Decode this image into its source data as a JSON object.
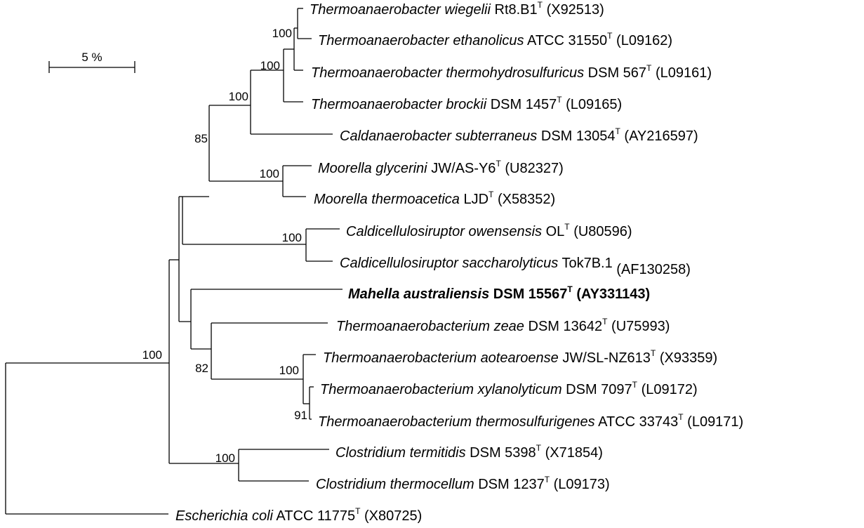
{
  "scale_bar": {
    "label": "5 %"
  },
  "taxa": [
    {
      "id": "t-wiegelii",
      "genus": "Thermoanaerobacter",
      "species": "wiegelii",
      "strain": "Rt8.B1",
      "type_mark": "T",
      "accession": "(X92513)",
      "bold": false
    },
    {
      "id": "t-ethanolicus",
      "genus": "Thermoanaerobacter",
      "species": "ethanolicus",
      "strain": "ATCC 31550",
      "type_mark": "T",
      "accession": "(L09162)",
      "bold": false
    },
    {
      "id": "t-thermohydrosulfuricus",
      "genus": "Thermoanaerobacter",
      "species": "thermohydrosulfuricus",
      "strain": "DSM 567",
      "type_mark": "T",
      "accession": "(L09161)",
      "bold": false
    },
    {
      "id": "t-brockii",
      "genus": "Thermoanaerobacter",
      "species": "brockii",
      "strain": "DSM 1457",
      "type_mark": "T",
      "accession": "(L09165)",
      "bold": false
    },
    {
      "id": "c-subterraneus",
      "genus": "Caldanaerobacter",
      "species": "subterraneus",
      "strain": "DSM 13054",
      "type_mark": "T",
      "accession": "(AY216597)",
      "bold": false
    },
    {
      "id": "m-glycerini",
      "genus": "Moorella",
      "species": "glycerini",
      "strain": "JW/AS-Y6",
      "type_mark": "T",
      "accession": "(U82327)",
      "bold": false
    },
    {
      "id": "m-thermoacetica",
      "genus": "Moorella",
      "species": "thermoacetica",
      "strain": "LJD",
      "type_mark": "T",
      "accession": "(X58352)",
      "bold": false
    },
    {
      "id": "c-owensensis",
      "genus": "Caldicellulosiruptor",
      "species": "owensensis",
      "strain": "OL",
      "type_mark": "T",
      "accession": "(U80596)",
      "bold": false
    },
    {
      "id": "c-saccharolyticus",
      "genus": "Caldicellulosiruptor",
      "species": "saccharolyticus",
      "strain": "Tok7B.1",
      "type_mark": "",
      "accession": "(AF130258)",
      "bold": false
    },
    {
      "id": "m-australiensis",
      "genus": "Mahella",
      "species": "australiensis",
      "strain": "DSM 15567",
      "type_mark": "T",
      "accession": "(AY331143)",
      "bold": true
    },
    {
      "id": "tm-zeae",
      "genus": "Thermoanaerobacterium",
      "species": "zeae",
      "strain": "DSM 13642",
      "type_mark": "T",
      "accession": "(U75993)",
      "bold": false
    },
    {
      "id": "tm-aotearoense",
      "genus": "Thermoanaerobacterium",
      "species": "aotearoense",
      "strain": "JW/SL-NZ613",
      "type_mark": "T",
      "accession": "(X93359)",
      "bold": false
    },
    {
      "id": "tm-xylanolyticum",
      "genus": "Thermoanaerobacterium",
      "species": "xylanolyticum",
      "strain": "DSM 7097",
      "type_mark": "T",
      "accession": "(L09172)",
      "bold": false
    },
    {
      "id": "tm-thermosulfurigenes",
      "genus": "Thermoanaerobacterium",
      "species": "thermosulfurigenes",
      "strain": "ATCC 33743",
      "type_mark": "T",
      "accession": "(L09171)",
      "bold": false
    },
    {
      "id": "c-termitidis",
      "genus": "Clostridium",
      "species": "termitidis",
      "strain": "DSM 5398",
      "type_mark": "T",
      "accession": "(X71854)",
      "bold": false
    },
    {
      "id": "c-thermocellum",
      "genus": "Clostridium",
      "species": "thermocellum",
      "strain": "DSM 1237",
      "type_mark": "T",
      "accession": "(L09173)",
      "bold": false
    },
    {
      "id": "e-coli",
      "genus": "Escherichia",
      "species": "coli",
      "strain": "ATCC 11775",
      "type_mark": "T",
      "accession": "(X80725)",
      "bold": false
    }
  ],
  "bootstrap": [
    {
      "id": "node-thermoanaerobacter-1",
      "value": "100"
    },
    {
      "id": "node-thermoanaerobacter-2",
      "value": "100"
    },
    {
      "id": "node-thermoanaerobacter-3",
      "value": "100"
    },
    {
      "id": "node-core",
      "value": "85"
    },
    {
      "id": "node-moorella",
      "value": "100"
    },
    {
      "id": "node-caldicellulosiruptor",
      "value": "100"
    },
    {
      "id": "node-thermoanaerobacterium",
      "value": "82"
    },
    {
      "id": "node-aotearoense",
      "value": "100"
    },
    {
      "id": "node-xylanolyticum",
      "value": "91"
    },
    {
      "id": "node-clostridium",
      "value": "100"
    },
    {
      "id": "node-ingroup",
      "value": "100"
    }
  ]
}
